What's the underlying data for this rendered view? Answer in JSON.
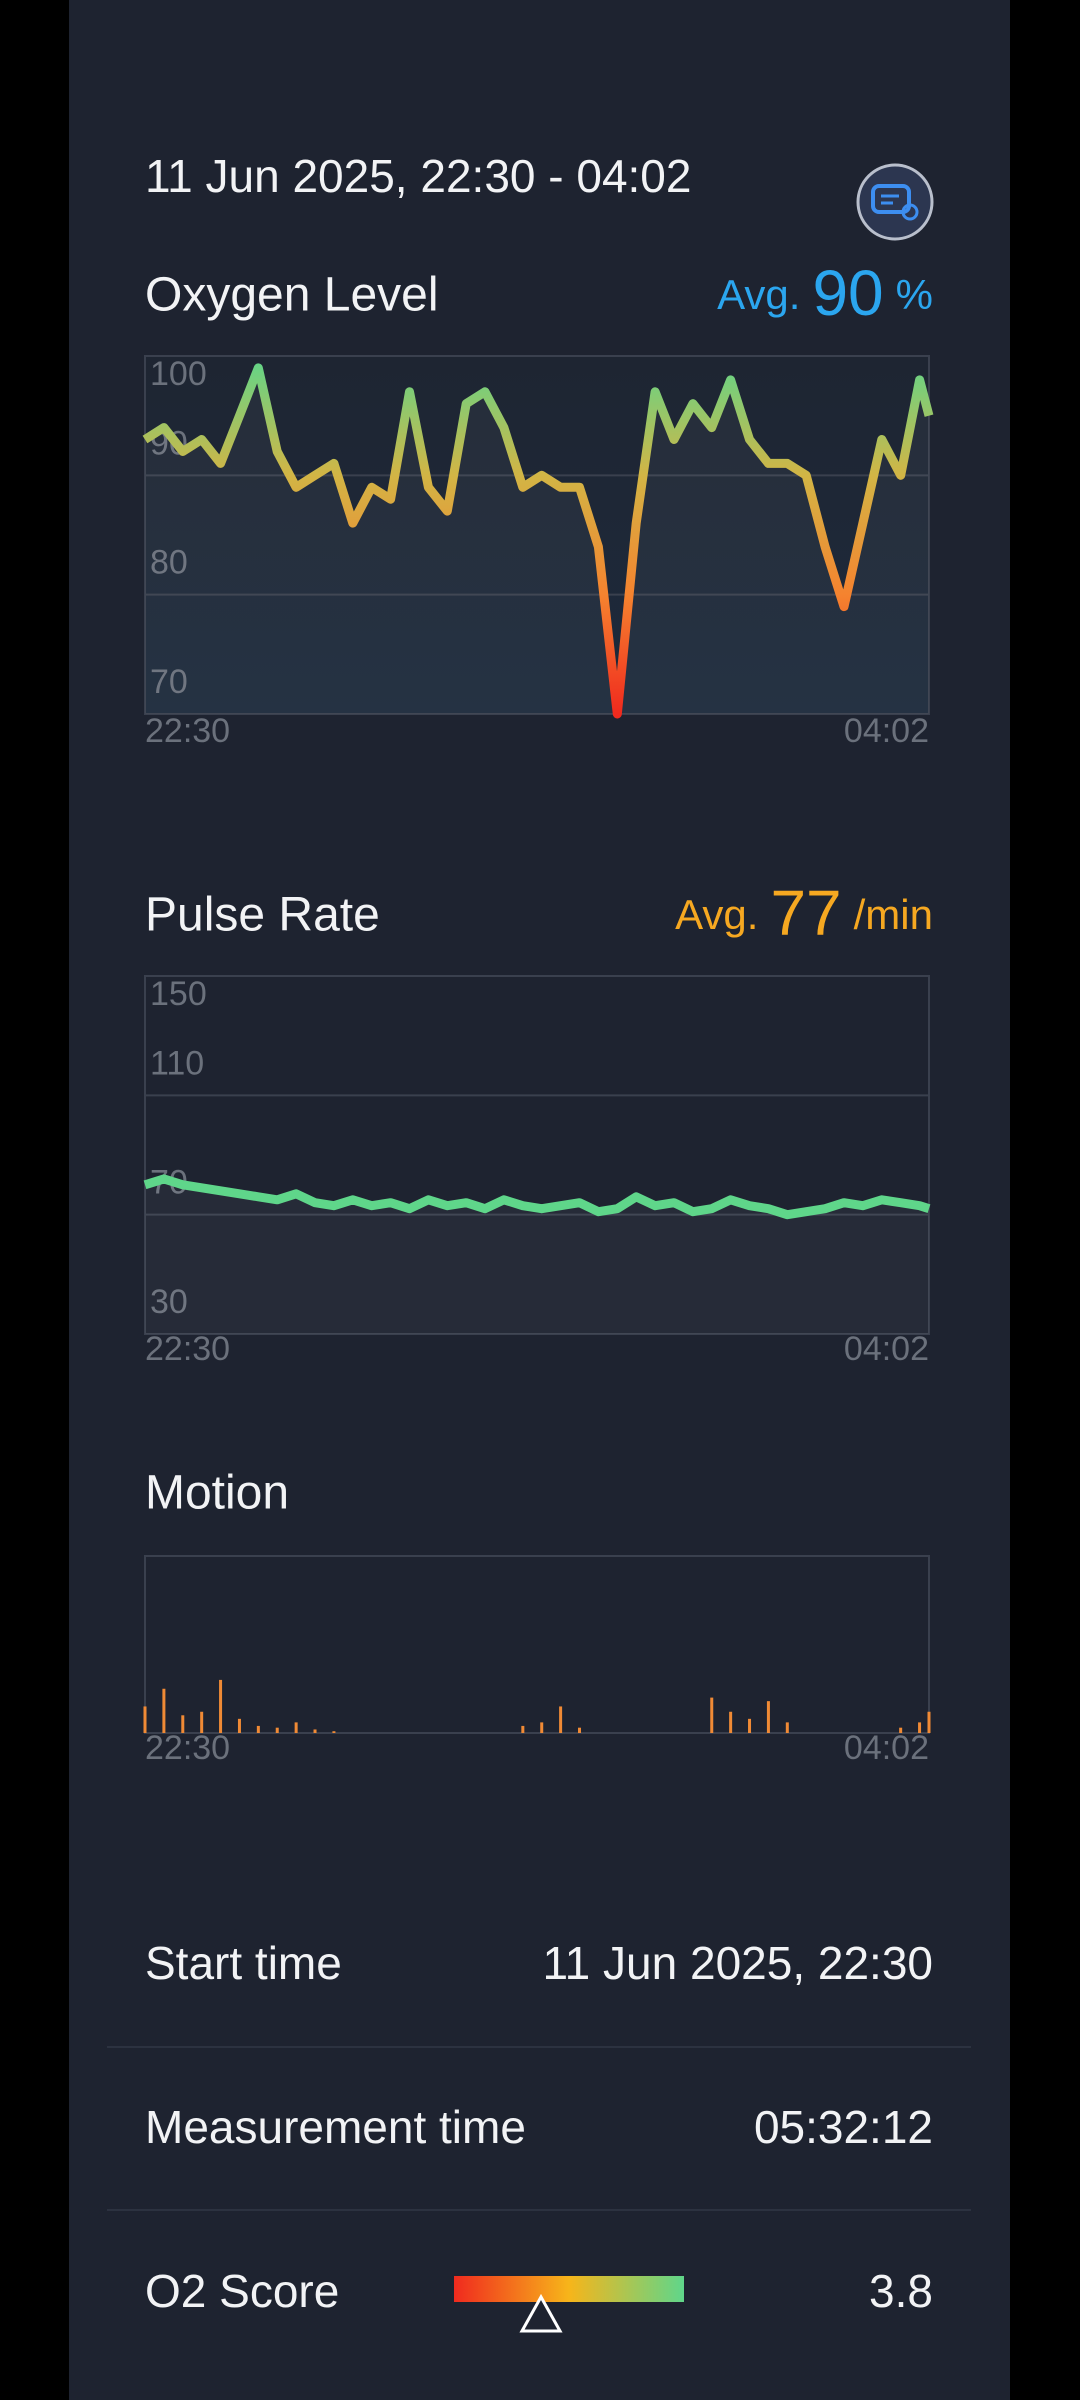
{
  "header": {
    "title": "11 Jun 2025, 22:30 - 04:02"
  },
  "chart_data": [
    {
      "type": "line",
      "title": "Oxygen Level",
      "avg": {
        "label": "Avg.",
        "value": 90,
        "unit": "%"
      },
      "avg_color": "#2ba6ef",
      "x": [
        0,
        8,
        16,
        24,
        32,
        40,
        48,
        56,
        64,
        72,
        80,
        88,
        96,
        104,
        112,
        120,
        128,
        136,
        144,
        152,
        160,
        168,
        176,
        184,
        192,
        200,
        208,
        216,
        224,
        232,
        240,
        248,
        256,
        264,
        272,
        280,
        288,
        296,
        304,
        312,
        320,
        328,
        332
      ],
      "values": [
        93,
        94,
        92,
        93,
        91,
        95,
        99,
        92,
        89,
        90,
        91,
        86,
        89,
        88,
        97,
        89,
        87,
        96,
        97,
        94,
        89,
        90,
        89,
        89,
        84,
        70,
        86,
        97,
        93,
        96,
        94,
        98,
        93,
        91,
        91,
        90,
        84,
        79,
        86,
        93,
        90,
        98,
        95
      ],
      "xlim": [
        0,
        332
      ],
      "xticks": [
        {
          "value": 0,
          "label": "22:30"
        },
        {
          "value": 332,
          "label": "04:02"
        }
      ],
      "ylim": [
        70,
        100
      ],
      "yticks": [
        70,
        80,
        90,
        100
      ],
      "grid": true,
      "colors": [
        "#5fd68a",
        "#d2b545",
        "#f5832f",
        "#f02a1e"
      ]
    },
    {
      "type": "line",
      "title": "Pulse Rate",
      "avg": {
        "label": "Avg.",
        "value": 77,
        "unit": "/min"
      },
      "avg_color": "#f6a821",
      "x": [
        0,
        8,
        16,
        24,
        32,
        40,
        48,
        56,
        64,
        72,
        80,
        88,
        96,
        104,
        112,
        120,
        128,
        136,
        144,
        152,
        160,
        168,
        176,
        184,
        192,
        200,
        208,
        216,
        224,
        232,
        240,
        248,
        256,
        264,
        272,
        280,
        288,
        296,
        304,
        312,
        320,
        328,
        332
      ],
      "values": [
        80,
        82,
        80,
        79,
        78,
        77,
        76,
        75,
        77,
        74,
        73,
        75,
        73,
        74,
        72,
        75,
        73,
        74,
        72,
        75,
        73,
        72,
        73,
        74,
        71,
        72,
        76,
        73,
        74,
        71,
        72,
        75,
        73,
        72,
        70,
        71,
        72,
        74,
        73,
        75,
        74,
        73,
        72
      ],
      "xlim": [
        0,
        332
      ],
      "xticks": [
        {
          "value": 0,
          "label": "22:30"
        },
        {
          "value": 332,
          "label": "04:02"
        }
      ],
      "ylim": [
        30,
        150
      ],
      "yticks": [
        30,
        70,
        110,
        150
      ],
      "grid": true,
      "colors": [
        "#5fd68a"
      ]
    },
    {
      "type": "bar",
      "title": "Motion",
      "x": [
        0,
        8,
        16,
        24,
        32,
        40,
        48,
        56,
        64,
        72,
        80,
        88,
        96,
        104,
        112,
        120,
        128,
        136,
        144,
        152,
        160,
        168,
        176,
        184,
        192,
        200,
        208,
        216,
        224,
        232,
        240,
        248,
        256,
        264,
        272,
        280,
        288,
        296,
        304,
        312,
        320,
        328,
        332
      ],
      "values": [
        15,
        25,
        10,
        12,
        30,
        8,
        4,
        3,
        6,
        2,
        1,
        0,
        0,
        0,
        0,
        0,
        0,
        0,
        0,
        0,
        4,
        6,
        15,
        3,
        0,
        0,
        0,
        0,
        0,
        0,
        20,
        12,
        8,
        18,
        6,
        0,
        0,
        0,
        0,
        0,
        3,
        6,
        12
      ],
      "xlim": [
        0,
        332
      ],
      "xticks": [
        {
          "value": 0,
          "label": "22:30"
        },
        {
          "value": 332,
          "label": "04:02"
        }
      ],
      "ylim": [
        0,
        100
      ],
      "colors": [
        "#f08a35"
      ]
    }
  ],
  "details": [
    {
      "label": "Start time",
      "value": "11 Jun 2025, 22:30"
    },
    {
      "label": "Measurement time",
      "value": "05:32:12"
    },
    {
      "label": "O2 Score",
      "value": "3.8"
    }
  ]
}
